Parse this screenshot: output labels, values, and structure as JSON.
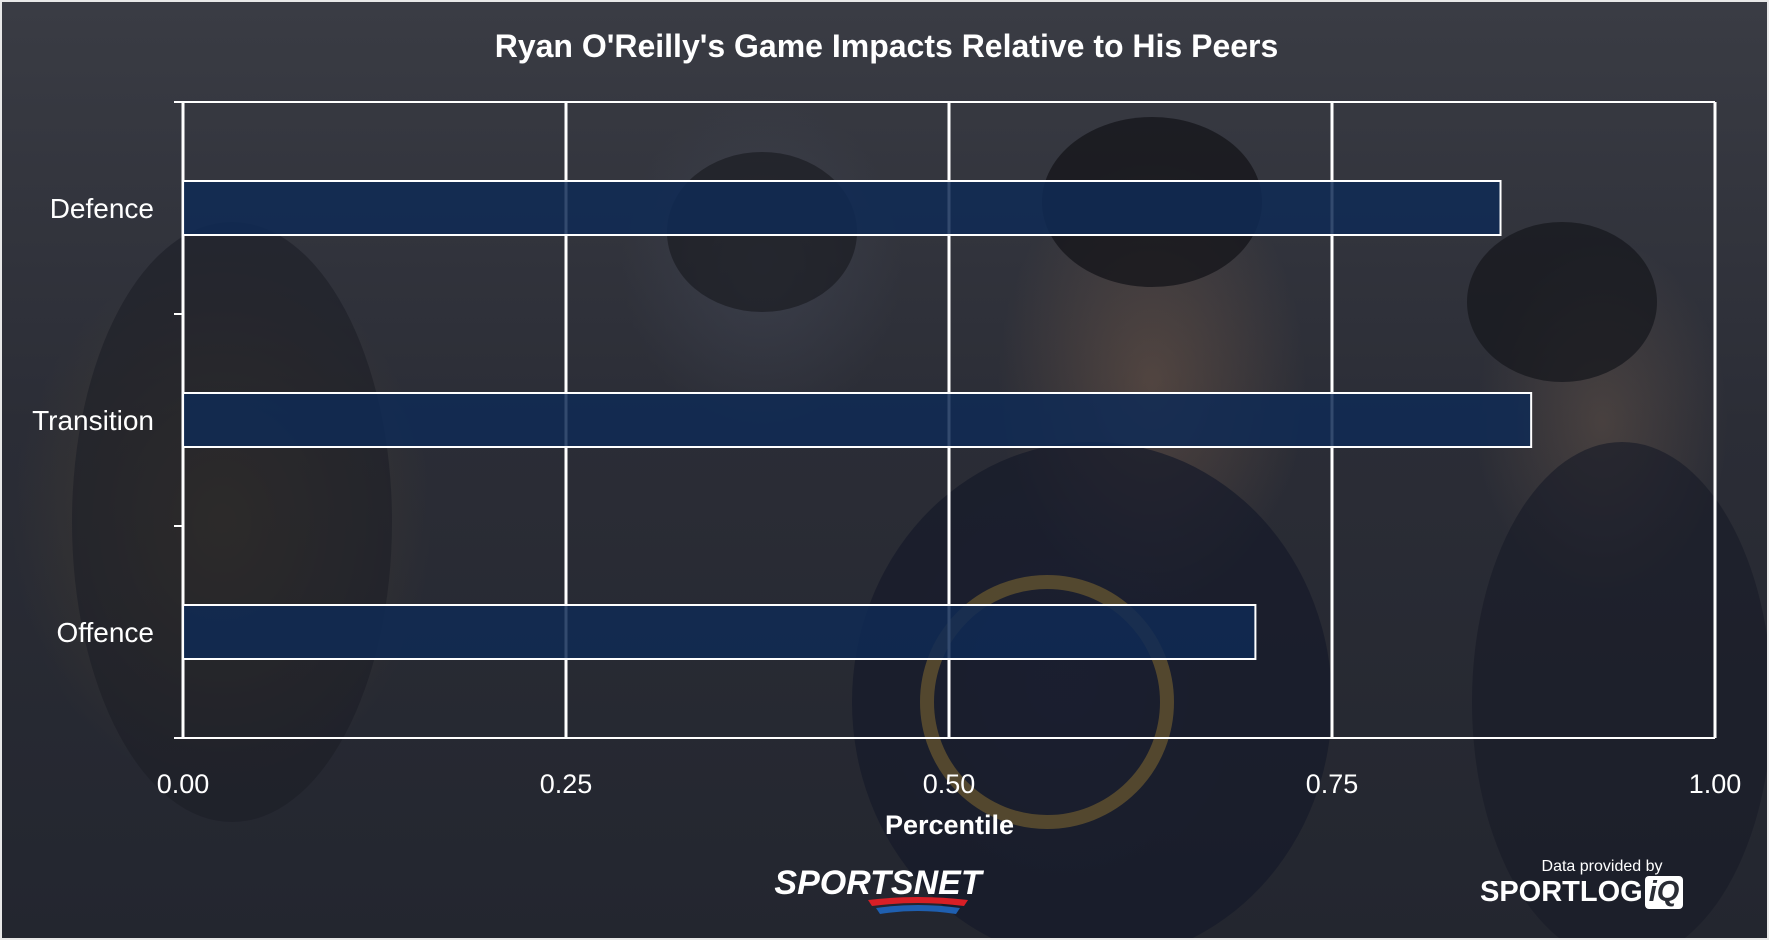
{
  "colors": {
    "bar_fill": "#0f2a55",
    "bar_stroke": "#ffffff",
    "grid": "#ffffff",
    "text": "#ffffff",
    "sportsnet_red": "#d81f26",
    "sportsnet_blue": "#1f5fb0"
  },
  "branding": {
    "sportsnet": "SPORTSNET",
    "credit_caption": "Data provided by",
    "sportlogiq_main": "SPORTLOG",
    "sportlogiq_iq": "iQ"
  },
  "chart_data": {
    "type": "bar",
    "orientation": "horizontal",
    "title": "Ryan O'Reilly's Game Impacts Relative to His Peers",
    "xlabel": "Percentile",
    "ylabel": "",
    "categories": [
      "Defence",
      "Transition",
      "Offence"
    ],
    "values": [
      0.86,
      0.88,
      0.7
    ],
    "xlim": [
      0,
      1
    ],
    "xticks": [
      "0.00",
      "0.25",
      "0.50",
      "0.75",
      "1.00"
    ],
    "grid": true,
    "legend": "none"
  }
}
